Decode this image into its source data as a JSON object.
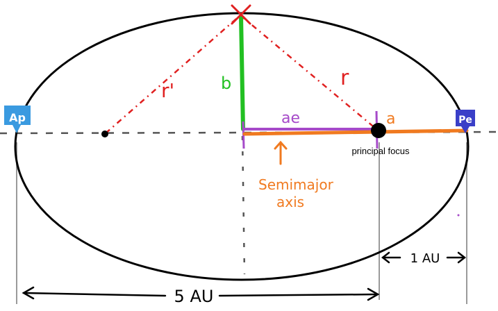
{
  "diagram": {
    "labels": {
      "r_prime": "r'",
      "r": "r",
      "b": "b",
      "ae": "ae",
      "a": "a",
      "principal_focus": "principal focus",
      "semimajor_line1": "Semimajor",
      "semimajor_line2": "axis",
      "ap": "Ap",
      "pe": "Pe",
      "dist_1au": "1 AU",
      "dist_5au": "5 AU"
    },
    "colors": {
      "ellipse": "#000000",
      "axis_dashed": "#555555",
      "r_lines": "#e02020",
      "b_line": "#22c022",
      "ae_line": "#a64ac9",
      "a_line": "#f07a20",
      "marker_blue": "#3a9ae0",
      "marker_navy": "#3a3fc8",
      "dimension_lines": "#999999"
    },
    "icons": {
      "body_marker": "cross-icon",
      "aphelion_marker": "map-pin-icon",
      "perihelion_marker": "map-pin-icon"
    }
  }
}
